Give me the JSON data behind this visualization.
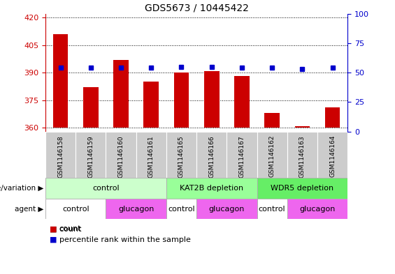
{
  "title": "GDS5673 / 10445422",
  "samples": [
    "GSM1146158",
    "GSM1146159",
    "GSM1146160",
    "GSM1146161",
    "GSM1146165",
    "GSM1146166",
    "GSM1146167",
    "GSM1146162",
    "GSM1146163",
    "GSM1146164"
  ],
  "counts": [
    411,
    382,
    397,
    385,
    390,
    391,
    388,
    368,
    361,
    371
  ],
  "percentile_ranks": [
    54,
    54,
    54,
    54,
    55,
    55,
    54,
    54,
    53,
    54
  ],
  "ylim_left": [
    358,
    422
  ],
  "ylim_right": [
    0,
    100
  ],
  "yticks_left": [
    360,
    375,
    390,
    405,
    420
  ],
  "yticks_right": [
    0,
    25,
    50,
    75,
    100
  ],
  "bar_color": "#cc0000",
  "dot_color": "#0000cc",
  "bar_base": 360,
  "genotype_groups": [
    {
      "label": "control",
      "start": 0,
      "end": 4,
      "color": "#ccffcc"
    },
    {
      "label": "KAT2B depletion",
      "start": 4,
      "end": 7,
      "color": "#99ff99"
    },
    {
      "label": "WDR5 depletion",
      "start": 7,
      "end": 10,
      "color": "#66ee66"
    }
  ],
  "agent_groups": [
    {
      "label": "control",
      "start": 0,
      "end": 2,
      "color": "#ffffff"
    },
    {
      "label": "glucagon",
      "start": 2,
      "end": 4,
      "color": "#ee66ee"
    },
    {
      "label": "control",
      "start": 4,
      "end": 5,
      "color": "#ffffff"
    },
    {
      "label": "glucagon",
      "start": 5,
      "end": 7,
      "color": "#ee66ee"
    },
    {
      "label": "control",
      "start": 7,
      "end": 8,
      "color": "#ffffff"
    },
    {
      "label": "glucagon",
      "start": 8,
      "end": 10,
      "color": "#ee66ee"
    }
  ],
  "legend_count_color": "#cc0000",
  "legend_dot_color": "#0000cc",
  "ylabel_right_color": "#0000cc",
  "ylabel_left_color": "#cc0000",
  "genotype_label": "genotype/variation",
  "agent_label": "agent",
  "background_color": "#ffffff",
  "tick_bg_color": "#cccccc"
}
